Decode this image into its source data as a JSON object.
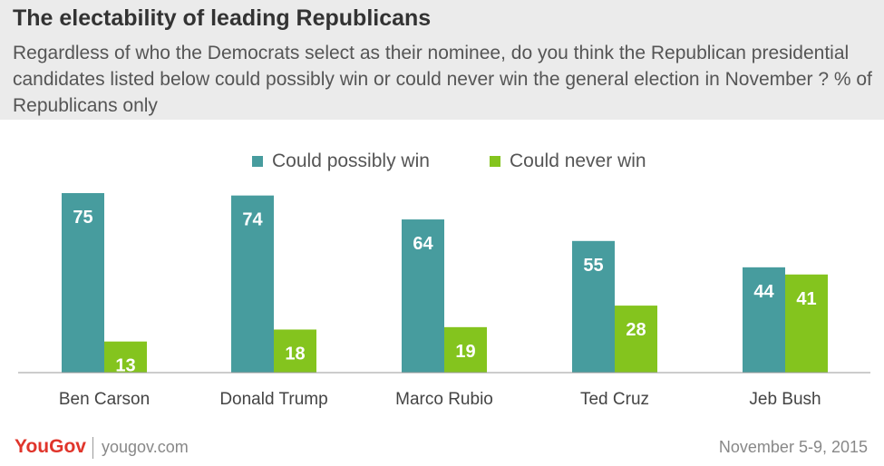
{
  "header": {
    "title": "The electability  of leading Republicans",
    "subtitle": "Regardless of who the Democrats select as their nominee, do you think the Republican presidential candidates listed below could possibly win or could never win the general election in November ? % of Republicans only"
  },
  "legend": {
    "items": [
      {
        "label": "Could possibly win",
        "color": "#479c9e"
      },
      {
        "label": "Could never win",
        "color": "#84c41e"
      }
    ]
  },
  "chart_data": {
    "type": "bar",
    "title": "The electability  of leading Republicans",
    "categories": [
      "Ben Carson",
      "Donald Trump",
      "Marco Rubio",
      "Ted Cruz",
      "Jeb Bush"
    ],
    "series": [
      {
        "name": "Could possibly win",
        "color": "#479c9e",
        "values": [
          75,
          74,
          64,
          55,
          44
        ]
      },
      {
        "name": "Could never win",
        "color": "#84c41e",
        "values": [
          13,
          18,
          19,
          28,
          41
        ]
      }
    ],
    "ylim": [
      0,
      80
    ],
    "grid": false,
    "legend_position": "top-center",
    "data_labels": true
  },
  "footer": {
    "brand": "YouGov",
    "site": "yougov.com",
    "date": "November 5-9, 2015"
  }
}
